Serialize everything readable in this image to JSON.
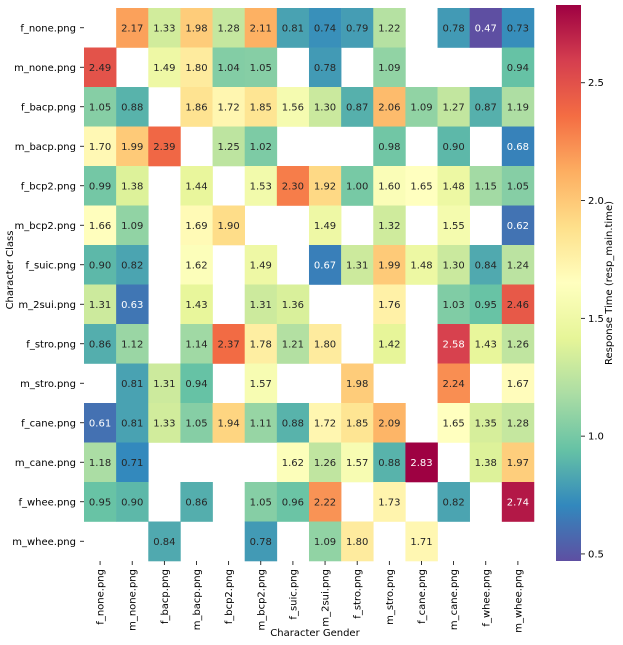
{
  "chart_data": {
    "type": "heatmap",
    "title": "",
    "xlabel": "Character Gender",
    "ylabel": "Character Class",
    "colorbar_label": "Response Time (resp_main.time)",
    "colorbar_range": [
      0.47,
      2.83
    ],
    "colorbar_ticks": [
      "0.5",
      "1.0",
      "1.5",
      "2.0",
      "2.5"
    ],
    "colorbar_tick_values": [
      0.5,
      1.0,
      1.5,
      2.0,
      2.5
    ],
    "colormap": "Spectral_r",
    "rows": [
      "f_none.png",
      "m_none.png",
      "f_bacp.png",
      "m_bacp.png",
      "f_bcp2.png",
      "m_bcp2.png",
      "f_suic.png",
      "m_2sui.png",
      "f_stro.png",
      "m_stro.png",
      "f_cane.png",
      "m_cane.png",
      "f_whee.png",
      "m_whee.png"
    ],
    "columns": [
      "f_none.png",
      "m_none.png",
      "f_bacp.png",
      "m_bacp.png",
      "f_bcp2.png",
      "m_bcp2.png",
      "f_suic.png",
      "m_2sui.png",
      "f_stro.png",
      "m_stro.png",
      "f_cane.png",
      "m_cane.png",
      "f_whee.png",
      "m_whee.png"
    ],
    "values": [
      [
        null,
        2.17,
        1.33,
        1.98,
        1.28,
        2.11,
        0.81,
        0.74,
        0.79,
        1.22,
        null,
        0.78,
        0.47,
        0.73
      ],
      [
        2.49,
        null,
        1.49,
        1.8,
        1.04,
        1.05,
        null,
        0.78,
        null,
        1.09,
        null,
        null,
        null,
        0.94
      ],
      [
        1.05,
        0.88,
        null,
        1.86,
        1.72,
        1.85,
        1.56,
        1.3,
        0.87,
        2.06,
        1.09,
        1.27,
        0.87,
        1.19
      ],
      [
        1.7,
        1.99,
        2.39,
        null,
        1.25,
        1.02,
        null,
        null,
        null,
        0.98,
        null,
        0.9,
        null,
        0.68
      ],
      [
        0.99,
        1.38,
        null,
        1.44,
        null,
        1.53,
        2.3,
        1.92,
        1.0,
        1.6,
        1.65,
        1.48,
        1.15,
        1.05
      ],
      [
        1.66,
        1.09,
        null,
        1.69,
        1.9,
        null,
        null,
        1.49,
        null,
        1.32,
        null,
        1.55,
        null,
        0.62
      ],
      [
        0.9,
        0.82,
        null,
        1.62,
        null,
        1.49,
        null,
        0.67,
        1.31,
        1.99,
        1.48,
        1.3,
        0.84,
        1.24
      ],
      [
        1.31,
        0.63,
        null,
        1.43,
        null,
        1.31,
        1.36,
        null,
        null,
        1.76,
        null,
        1.03,
        0.95,
        2.46
      ],
      [
        0.86,
        1.12,
        null,
        1.14,
        2.37,
        1.78,
        1.21,
        1.8,
        null,
        1.42,
        null,
        2.58,
        1.43,
        1.26
      ],
      [
        null,
        0.81,
        1.31,
        0.94,
        null,
        1.57,
        null,
        null,
        1.98,
        null,
        null,
        2.24,
        null,
        1.67
      ],
      [
        0.61,
        0.81,
        1.33,
        1.05,
        1.94,
        1.11,
        0.88,
        1.72,
        1.85,
        2.09,
        null,
        1.65,
        1.35,
        1.28
      ],
      [
        1.18,
        0.71,
        null,
        null,
        null,
        null,
        1.62,
        1.26,
        1.57,
        0.88,
        2.83,
        null,
        1.38,
        1.97
      ],
      [
        0.95,
        0.9,
        null,
        0.86,
        null,
        1.05,
        0.96,
        2.22,
        null,
        1.73,
        null,
        0.82,
        null,
        2.74
      ],
      [
        null,
        null,
        0.84,
        null,
        null,
        0.78,
        null,
        1.09,
        1.8,
        null,
        1.71,
        null,
        null,
        null
      ]
    ]
  }
}
